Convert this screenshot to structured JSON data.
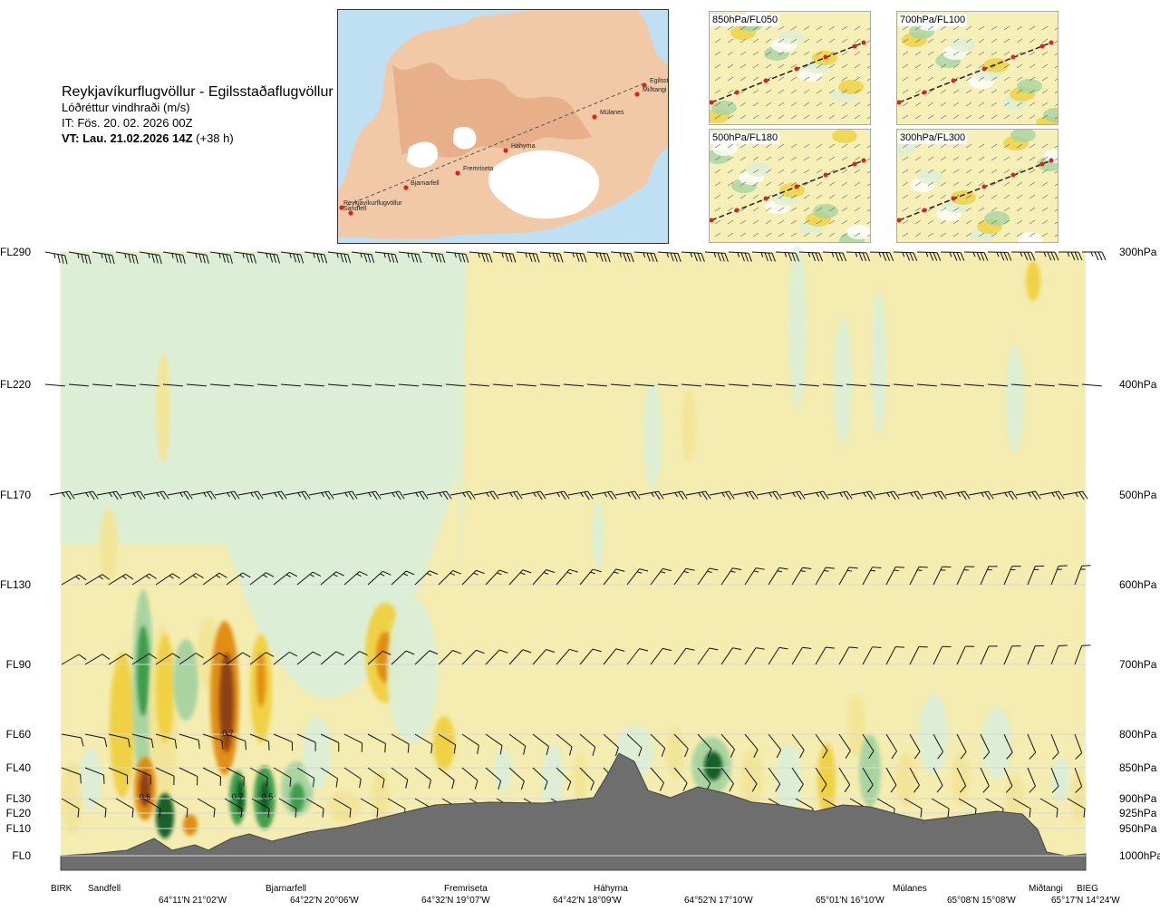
{
  "header": {
    "title": "Reykjavíkurflugvöllur - Egilsstaðaflugvöllur",
    "subtitle": "Lóðréttur vindhraði (m/s)",
    "it": "IT: Fös. 20. 02. 2026 00Z",
    "vt_bold": "VT: Lau. 21.02.2026 14Z",
    "vt_rest": " (+38 h)"
  },
  "map": {
    "places": [
      {
        "name": "Reykjavíkurflugvöllur"
      },
      {
        "name": "Sandfell"
      },
      {
        "name": "Bjarnarfell"
      },
      {
        "name": "Fremriseta"
      },
      {
        "name": "Háhyrna"
      },
      {
        "name": "Múlanes"
      },
      {
        "name": "Miðtangi"
      },
      {
        "name": "Egilsstaðir"
      }
    ]
  },
  "thumbnails": [
    {
      "label": "850hPa/FL050"
    },
    {
      "label": "700hPa/FL100"
    },
    {
      "label": "500hPa/FL180"
    },
    {
      "label": "300hPa/FL300"
    }
  ],
  "levels": [
    {
      "fl": "FL290",
      "hpa": "300hPa"
    },
    {
      "fl": "FL220",
      "hpa": "400hPa"
    },
    {
      "fl": "FL170",
      "hpa": "500hPa"
    },
    {
      "fl": "FL130",
      "hpa": "600hPa"
    },
    {
      "fl": "FL90",
      "hpa": "700hPa"
    },
    {
      "fl": "FL60",
      "hpa": "800hPa"
    },
    {
      "fl": "FL40",
      "hpa": "850hPa"
    },
    {
      "fl": "FL30",
      "hpa": "900hPa"
    },
    {
      "fl": "FL20",
      "hpa": "925hPa"
    },
    {
      "fl": "FL10",
      "hpa": "950hPa"
    },
    {
      "fl": "FL0",
      "hpa": "1000hPa"
    }
  ],
  "x_places": [
    "BIRK",
    "Sandfell",
    "Bjarnarfell",
    "Fremriseta",
    "Háhyrna",
    "Múlanes",
    "Miðtangi",
    "BIEG"
  ],
  "x_coords": [
    "64°11'N 21°02'W",
    "64°22'N 20°06'W",
    "64°32'N 19°07'W",
    "64°42'N 18°09'W",
    "64°52'N 17°10'W",
    "65°01'N 16°10'W",
    "65°08'N 15°08'W",
    "65°17'N 14°24'W"
  ],
  "contour_labels": [
    "0.6",
    "-0.7",
    "0.7",
    "0.5"
  ],
  "colors": {
    "updraft_weak": "#f3e596",
    "updraft_mod": "#f0d040",
    "updraft_strong": "#e08a10",
    "updraft_extreme": "#8a3e12",
    "downdraft_weak": "#dcefd6",
    "downdraft_mod": "#a6d3a0",
    "downdraft_strong": "#3a9a4a",
    "downdraft_extreme": "#0a5a20",
    "background": "#f4ecb0",
    "terrain": "#6e6e6e"
  },
  "chart_data": {
    "type": "heatmap",
    "title": "Lóðréttur vindhraði (m/s)",
    "x_categories": [
      "BIRK",
      "Sandfell",
      "Bjarnarfell",
      "Fremriseta",
      "Háhyrna",
      "Múlanes",
      "Miðtangi",
      "BIEG"
    ],
    "y_levels": [
      "FL0",
      "FL10",
      "FL20",
      "FL30",
      "FL40",
      "FL60",
      "FL90",
      "FL130",
      "FL170",
      "FL220",
      "FL290"
    ],
    "pressure_levels": [
      "1000hPa",
      "950hPa",
      "925hPa",
      "900hPa",
      "850hPa",
      "800hPa",
      "700hPa",
      "600hPa",
      "500hPa",
      "400hPa",
      "300hPa"
    ],
    "labeled_values": [
      0.6,
      -0.7,
      0.7,
      0.5
    ]
  }
}
